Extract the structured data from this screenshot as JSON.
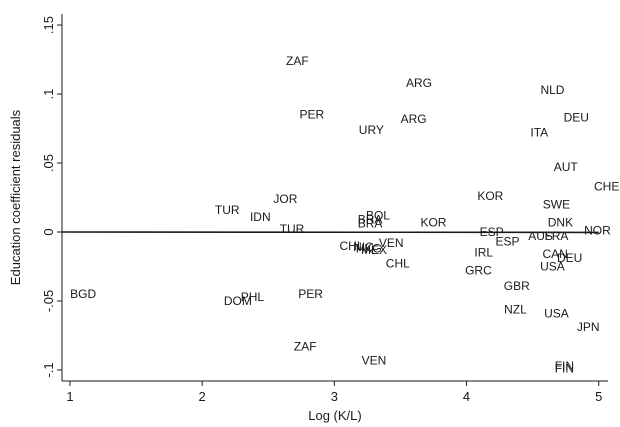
{
  "chart_data": {
    "type": "scatter",
    "xlabel": "Log (K/L)",
    "ylabel": "Education coefficient residuals",
    "xlim": [
      0.94,
      5.07
    ],
    "ylim": [
      -0.108,
      0.158
    ],
    "x_ticks": [
      1,
      2,
      3,
      4,
      5
    ],
    "y_ticks": [
      -0.1,
      -0.05,
      0,
      0.05,
      0.1,
      0.15
    ],
    "y_tick_labels": [
      "-.1",
      "-.05",
      "0",
      ".05",
      ".1",
      ".15"
    ],
    "grid": false,
    "fit_line": {
      "x": [
        0.94,
        5.0
      ],
      "y": [
        0.0,
        -0.0003
      ]
    },
    "points": [
      {
        "label": "ZAF",
        "x": 2.72,
        "y": 0.124
      },
      {
        "label": "ARG",
        "x": 3.64,
        "y": 0.108
      },
      {
        "label": "NLD",
        "x": 4.65,
        "y": 0.103
      },
      {
        "label": "PER",
        "x": 2.83,
        "y": 0.085
      },
      {
        "label": "DEU",
        "x": 4.83,
        "y": 0.083
      },
      {
        "label": "ARG",
        "x": 3.6,
        "y": 0.082
      },
      {
        "label": "URY",
        "x": 3.28,
        "y": 0.074
      },
      {
        "label": "ITA",
        "x": 4.55,
        "y": 0.072
      },
      {
        "label": "AUT",
        "x": 4.75,
        "y": 0.047
      },
      {
        "label": "CHE",
        "x": 5.06,
        "y": 0.033
      },
      {
        "label": "KOR",
        "x": 4.18,
        "y": 0.026
      },
      {
        "label": "JOR",
        "x": 2.63,
        "y": 0.024
      },
      {
        "label": "SWE",
        "x": 4.68,
        "y": 0.02
      },
      {
        "label": "TUR",
        "x": 2.19,
        "y": 0.016
      },
      {
        "label": "IDN",
        "x": 2.44,
        "y": 0.011
      },
      {
        "label": "BOL",
        "x": 3.33,
        "y": 0.012
      },
      {
        "label": "BRA",
        "x": 3.27,
        "y": 0.009
      },
      {
        "label": "KOR",
        "x": 3.75,
        "y": 0.007
      },
      {
        "label": "BRA",
        "x": 3.27,
        "y": 0.006
      },
      {
        "label": "DNK",
        "x": 4.71,
        "y": 0.007
      },
      {
        "label": "TUR",
        "x": 2.68,
        "y": 0.002
      },
      {
        "label": "ESP",
        "x": 4.19,
        "y": 0.0
      },
      {
        "label": "NOR",
        "x": 4.99,
        "y": 0.001
      },
      {
        "label": "AUS",
        "x": 4.56,
        "y": -0.003
      },
      {
        "label": "FRA",
        "x": 4.68,
        "y": -0.003
      },
      {
        "label": "ESP",
        "x": 4.31,
        "y": -0.007
      },
      {
        "label": "VEN",
        "x": 3.43,
        "y": -0.008
      },
      {
        "label": "CHL",
        "x": 3.13,
        "y": -0.01
      },
      {
        "label": "NIC",
        "x": 3.22,
        "y": -0.011
      },
      {
        "label": "HKG",
        "x": 3.26,
        "y": -0.012
      },
      {
        "label": "MEX",
        "x": 3.3,
        "y": -0.013
      },
      {
        "label": "IRL",
        "x": 4.13,
        "y": -0.015
      },
      {
        "label": "CAN",
        "x": 4.67,
        "y": -0.016
      },
      {
        "label": "DEU",
        "x": 4.78,
        "y": -0.019
      },
      {
        "label": "CHL",
        "x": 3.48,
        "y": -0.023
      },
      {
        "label": "USA",
        "x": 4.65,
        "y": -0.025
      },
      {
        "label": "GRC",
        "x": 4.09,
        "y": -0.028
      },
      {
        "label": "GBR",
        "x": 4.38,
        "y": -0.039
      },
      {
        "label": "BGD",
        "x": 1.1,
        "y": -0.045
      },
      {
        "label": "PER",
        "x": 2.82,
        "y": -0.045
      },
      {
        "label": "PHL",
        "x": 2.38,
        "y": -0.047
      },
      {
        "label": "DOM",
        "x": 2.27,
        "y": -0.05
      },
      {
        "label": "NZL",
        "x": 4.37,
        "y": -0.056
      },
      {
        "label": "USA",
        "x": 4.68,
        "y": -0.059
      },
      {
        "label": "JPN",
        "x": 4.92,
        "y": -0.069
      },
      {
        "label": "ZAF",
        "x": 2.78,
        "y": -0.083
      },
      {
        "label": "VEN",
        "x": 3.3,
        "y": -0.093
      },
      {
        "label": "FIN",
        "x": 4.74,
        "y": -0.097
      },
      {
        "label": "FIN",
        "x": 4.74,
        "y": -0.099
      }
    ]
  }
}
